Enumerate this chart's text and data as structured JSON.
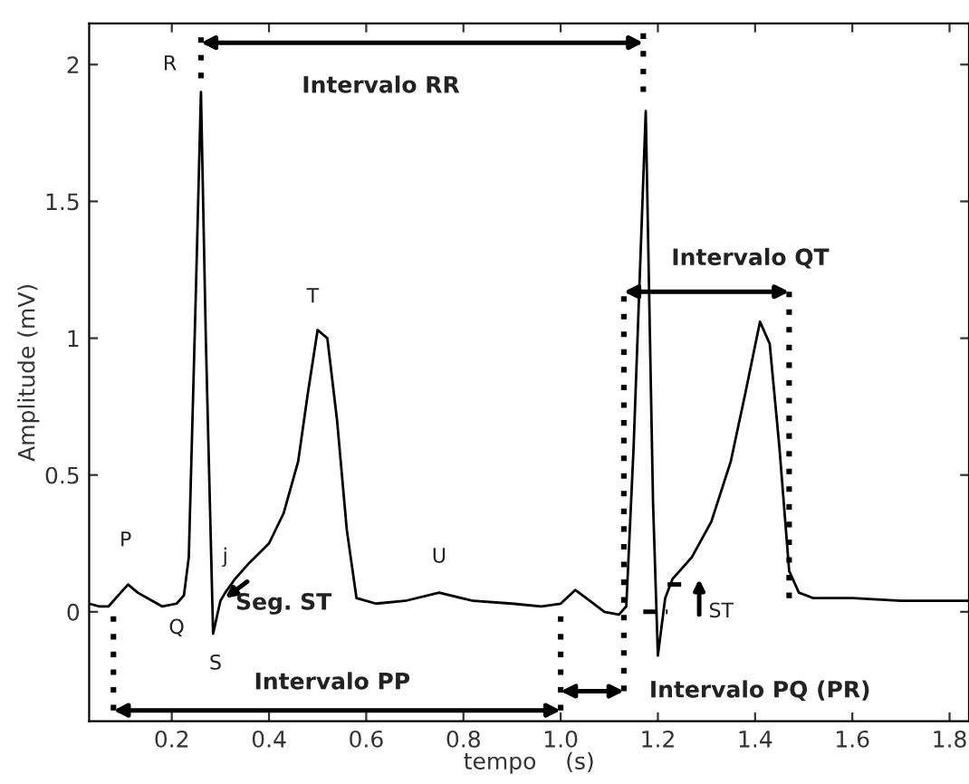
{
  "chart_data": {
    "type": "line",
    "xlabel": "tempo    (s)",
    "ylabel": "Amplitude (mV)",
    "x": [
      0.03,
      0.05,
      0.07,
      0.09,
      0.11,
      0.13,
      0.15,
      0.18,
      0.21,
      0.225,
      0.235,
      0.25,
      0.26,
      0.27,
      0.285,
      0.3,
      0.31,
      0.33,
      0.36,
      0.4,
      0.43,
      0.46,
      0.48,
      0.5,
      0.52,
      0.54,
      0.56,
      0.58,
      0.62,
      0.68,
      0.75,
      0.82,
      0.9,
      0.96,
      1.0,
      1.03,
      1.06,
      1.09,
      1.12,
      1.135,
      1.15,
      1.175,
      1.19,
      1.2,
      1.215,
      1.23,
      1.27,
      1.31,
      1.35,
      1.38,
      1.41,
      1.43,
      1.45,
      1.47,
      1.49,
      1.52,
      1.6,
      1.7,
      1.84
    ],
    "series": [
      {
        "color": "#000000",
        "values": [
          0.03,
          0.02,
          0.02,
          0.06,
          0.1,
          0.07,
          0.05,
          0.02,
          0.03,
          0.06,
          0.2,
          1.2,
          1.9,
          1.0,
          -0.08,
          0.04,
          0.07,
          0.12,
          0.18,
          0.25,
          0.36,
          0.55,
          0.8,
          1.03,
          1.0,
          0.7,
          0.3,
          0.05,
          0.03,
          0.04,
          0.07,
          0.04,
          0.03,
          0.02,
          0.03,
          0.08,
          0.04,
          0.0,
          -0.01,
          0.02,
          0.6,
          1.83,
          0.4,
          -0.16,
          0.05,
          0.12,
          0.2,
          0.33,
          0.55,
          0.8,
          1.06,
          0.98,
          0.6,
          0.15,
          0.07,
          0.05,
          0.05,
          0.04,
          0.04
        ]
      }
    ],
    "xlim": [
      0.03,
      1.84
    ],
    "ylim": [
      -0.4,
      2.15
    ],
    "xticks": [
      0.2,
      0.4,
      0.6,
      0.8,
      {
        "value": 1.0,
        "label": "1.0"
      },
      1.2,
      1.4,
      1.6,
      1.8
    ],
    "yticks": [
      0,
      0.5,
      1,
      1.5,
      2
    ],
    "grid": false,
    "legend": false,
    "marker": "none",
    "line_style": "solid",
    "annotations": [
      "R",
      "P",
      "Q",
      "S",
      "j",
      "T",
      "U",
      "Seg. ST",
      "Intervalo RR",
      "Intervalo PP",
      "Intervalo QT",
      "Intervalo PQ (PR)",
      "ST"
    ]
  }
}
